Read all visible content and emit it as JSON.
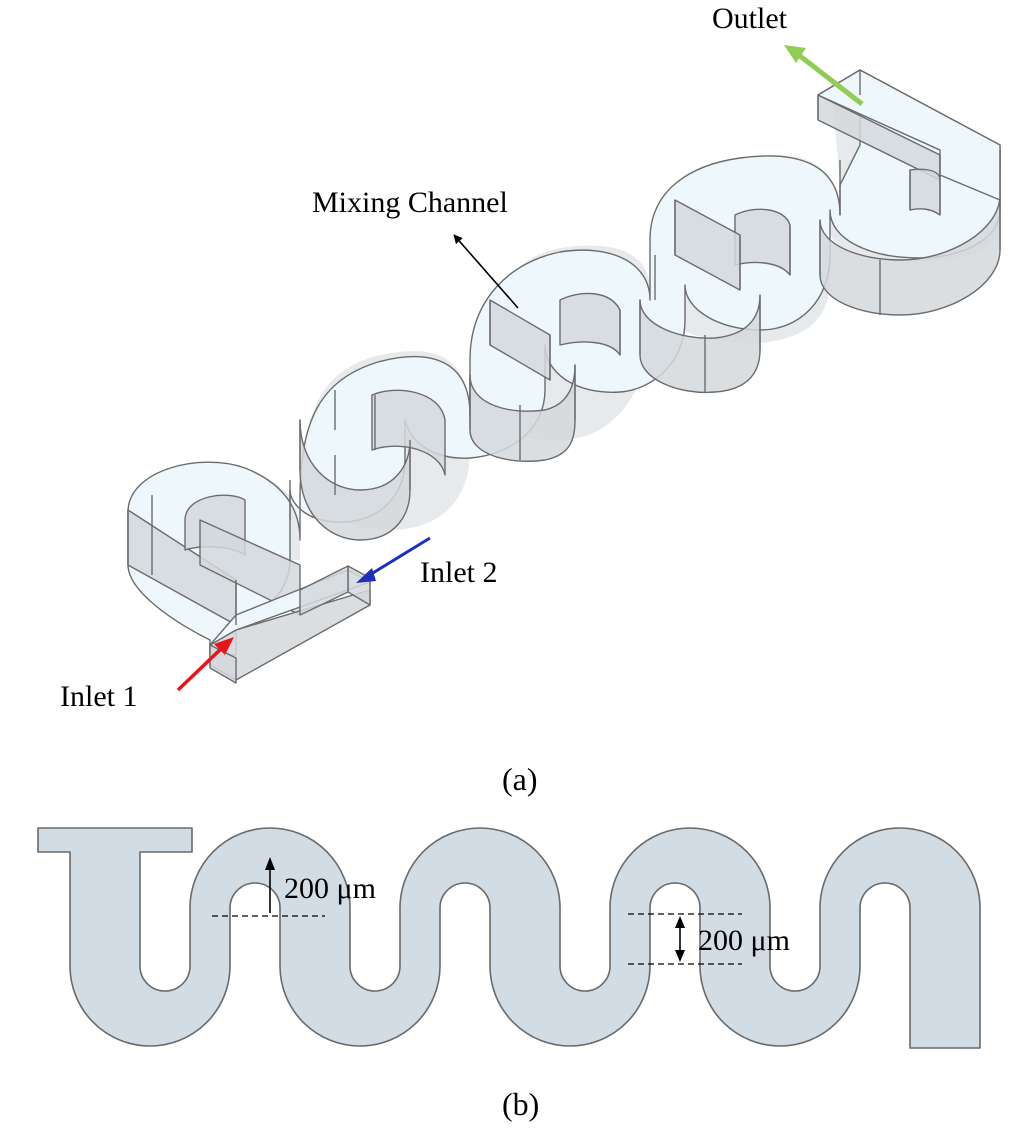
{
  "panel_a": {
    "caption": "(a)",
    "labels": {
      "outlet": "Outlet",
      "mixing_channel": "Mixing Channel",
      "inlet_1": "Inlet 1",
      "inlet_2": "Inlet 2"
    },
    "arrow_colors": {
      "inlet_1": "#e8141b",
      "inlet_2": "#1c2fc0",
      "outlet": "#8fce52",
      "mixing_channel": "#000000"
    },
    "channel_colors": {
      "floor": "#eef7fb",
      "wall": "#d3d8dc",
      "edge": "#6c6c6c"
    }
  },
  "panel_b": {
    "caption": "(b)",
    "dimensions": {
      "channel_width": "200 μm",
      "gap_width": "200 μm"
    },
    "channel_colors": {
      "fill": "#d1dce4",
      "edge": "#6a6a6a"
    }
  }
}
